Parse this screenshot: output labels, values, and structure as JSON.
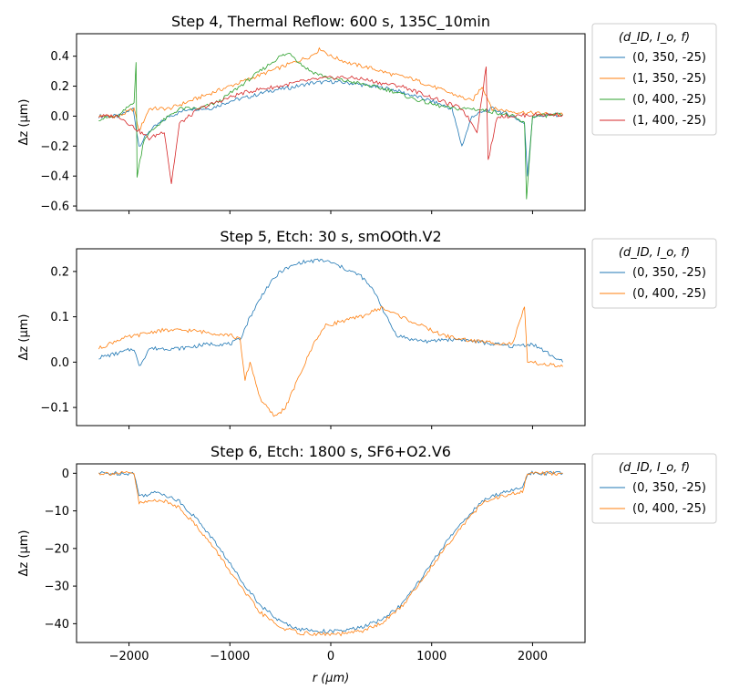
{
  "chart_data": [
    {
      "type": "line",
      "title": "Step 4, Thermal Reflow: 600 s, 135C_10min",
      "xlabel": "",
      "ylabel": "Δz (µm)",
      "xlim": [
        -2520,
        2520
      ],
      "ylim": [
        -0.63,
        0.55
      ],
      "yticks": [
        -0.6,
        -0.4,
        -0.2,
        0.0,
        0.2,
        0.4
      ],
      "ytick_labels": [
        "−0.6",
        "−0.4",
        "−0.2",
        "0.0",
        "0.2",
        "0.4"
      ],
      "xticks": [
        -2000,
        -1000,
        0,
        1000,
        2000
      ],
      "legend": {
        "title": "(d_ID, I_o, f)",
        "placement": "outside-right"
      },
      "series": [
        {
          "name": "(0, 350, -25)",
          "color": "#1f77b4",
          "points": [
            [
              -2300,
              0.0
            ],
            [
              -2100,
              0.0
            ],
            [
              -1960,
              0.05
            ],
            [
              -1900,
              -0.2
            ],
            [
              -1800,
              -0.1
            ],
            [
              -1600,
              0.0
            ],
            [
              -1400,
              0.05
            ],
            [
              -1200,
              0.05
            ],
            [
              -1000,
              0.1
            ],
            [
              -800,
              0.13
            ],
            [
              -600,
              0.17
            ],
            [
              -400,
              0.19
            ],
            [
              -200,
              0.22
            ],
            [
              0,
              0.23
            ],
            [
              200,
              0.22
            ],
            [
              400,
              0.2
            ],
            [
              600,
              0.18
            ],
            [
              800,
              0.14
            ],
            [
              1000,
              0.1
            ],
            [
              1200,
              0.05
            ],
            [
              1300,
              -0.2
            ],
            [
              1400,
              0.0
            ],
            [
              1600,
              0.05
            ],
            [
              1800,
              0.0
            ],
            [
              1920,
              -0.05
            ],
            [
              1950,
              -0.4
            ],
            [
              2000,
              0.0
            ],
            [
              2300,
              0.01
            ]
          ]
        },
        {
          "name": "(1, 350, -25)",
          "color": "#ff7f0e",
          "points": [
            [
              -2300,
              0.0
            ],
            [
              -2100,
              0.0
            ],
            [
              -1950,
              0.05
            ],
            [
              -1900,
              -0.1
            ],
            [
              -1800,
              0.05
            ],
            [
              -1600,
              0.05
            ],
            [
              -1400,
              0.1
            ],
            [
              -1200,
              0.15
            ],
            [
              -1000,
              0.2
            ],
            [
              -800,
              0.25
            ],
            [
              -600,
              0.3
            ],
            [
              -400,
              0.35
            ],
            [
              -200,
              0.4
            ],
            [
              -100,
              0.45
            ],
            [
              0,
              0.4
            ],
            [
              200,
              0.35
            ],
            [
              400,
              0.32
            ],
            [
              600,
              0.28
            ],
            [
              800,
              0.25
            ],
            [
              1000,
              0.2
            ],
            [
              1200,
              0.15
            ],
            [
              1400,
              0.1
            ],
            [
              1500,
              0.2
            ],
            [
              1600,
              0.05
            ],
            [
              1800,
              0.03
            ],
            [
              2000,
              0.02
            ],
            [
              2300,
              0.01
            ]
          ]
        },
        {
          "name": "(0, 400, -25)",
          "color": "#2ca02c",
          "points": [
            [
              -2300,
              -0.02
            ],
            [
              -2100,
              0.0
            ],
            [
              -1950,
              0.1
            ],
            [
              -1930,
              0.35
            ],
            [
              -1920,
              -0.4
            ],
            [
              -1850,
              -0.15
            ],
            [
              -1700,
              -0.05
            ],
            [
              -1500,
              0.05
            ],
            [
              -1300,
              0.05
            ],
            [
              -1100,
              0.1
            ],
            [
              -900,
              0.2
            ],
            [
              -700,
              0.3
            ],
            [
              -500,
              0.4
            ],
            [
              -400,
              0.42
            ],
            [
              -300,
              0.35
            ],
            [
              -200,
              0.3
            ],
            [
              0,
              0.25
            ],
            [
              200,
              0.23
            ],
            [
              400,
              0.2
            ],
            [
              600,
              0.17
            ],
            [
              800,
              0.12
            ],
            [
              1000,
              0.08
            ],
            [
              1200,
              0.05
            ],
            [
              1400,
              0.05
            ],
            [
              1600,
              0.03
            ],
            [
              1800,
              0.0
            ],
            [
              1920,
              -0.05
            ],
            [
              1940,
              -0.55
            ],
            [
              2000,
              0.0
            ],
            [
              2300,
              0.01
            ]
          ]
        },
        {
          "name": "(1, 400, -25)",
          "color": "#d62728",
          "points": [
            [
              -2300,
              0.0
            ],
            [
              -2100,
              0.0
            ],
            [
              -1900,
              -0.1
            ],
            [
              -1800,
              -0.15
            ],
            [
              -1650,
              -0.1
            ],
            [
              -1580,
              -0.45
            ],
            [
              -1500,
              -0.05
            ],
            [
              -1300,
              0.05
            ],
            [
              -1100,
              0.1
            ],
            [
              -900,
              0.15
            ],
            [
              -700,
              0.18
            ],
            [
              -500,
              0.2
            ],
            [
              -300,
              0.23
            ],
            [
              -100,
              0.25
            ],
            [
              100,
              0.26
            ],
            [
              300,
              0.25
            ],
            [
              500,
              0.22
            ],
            [
              700,
              0.2
            ],
            [
              900,
              0.15
            ],
            [
              1100,
              0.1
            ],
            [
              1300,
              0.05
            ],
            [
              1450,
              -0.1
            ],
            [
              1540,
              0.33
            ],
            [
              1560,
              -0.3
            ],
            [
              1650,
              0.0
            ],
            [
              1800,
              0.0
            ],
            [
              2000,
              0.01
            ],
            [
              2300,
              0.01
            ]
          ]
        }
      ]
    },
    {
      "type": "line",
      "title": "Step 5, Etch: 30 s, smOOth.V2",
      "xlabel": "",
      "ylabel": "Δz (µm)",
      "xlim": [
        -2520,
        2520
      ],
      "ylim": [
        -0.14,
        0.25
      ],
      "yticks": [
        -0.1,
        0.0,
        0.1,
        0.2
      ],
      "ytick_labels": [
        "−0.1",
        "0.0",
        "0.1",
        "0.2"
      ],
      "xticks": [
        -2000,
        -1000,
        0,
        1000,
        2000
      ],
      "legend": {
        "title": "(d_ID, I_o, f)",
        "placement": "outside-right"
      },
      "series": [
        {
          "name": "(0, 350, -25)",
          "color": "#1f77b4",
          "points": [
            [
              -2300,
              0.01
            ],
            [
              -2100,
              0.02
            ],
            [
              -1950,
              0.03
            ],
            [
              -1900,
              -0.01
            ],
            [
              -1800,
              0.03
            ],
            [
              -1500,
              0.03
            ],
            [
              -1200,
              0.04
            ],
            [
              -1000,
              0.04
            ],
            [
              -900,
              0.05
            ],
            [
              -800,
              0.1
            ],
            [
              -650,
              0.16
            ],
            [
              -500,
              0.2
            ],
            [
              -300,
              0.22
            ],
            [
              -100,
              0.225
            ],
            [
              0,
              0.22
            ],
            [
              200,
              0.2
            ],
            [
              300,
              0.19
            ],
            [
              450,
              0.15
            ],
            [
              550,
              0.1
            ],
            [
              650,
              0.06
            ],
            [
              800,
              0.05
            ],
            [
              1000,
              0.045
            ],
            [
              1100,
              0.05
            ],
            [
              1300,
              0.05
            ],
            [
              1600,
              0.04
            ],
            [
              1800,
              0.035
            ],
            [
              2000,
              0.04
            ],
            [
              2300,
              0.0
            ]
          ]
        },
        {
          "name": "(0, 400, -25)",
          "color": "#ff7f0e",
          "points": [
            [
              -2300,
              0.03
            ],
            [
              -2100,
              0.05
            ],
            [
              -1900,
              0.06
            ],
            [
              -1700,
              0.07
            ],
            [
              -1400,
              0.07
            ],
            [
              -1200,
              0.065
            ],
            [
              -1000,
              0.06
            ],
            [
              -900,
              0.05
            ],
            [
              -850,
              -0.04
            ],
            [
              -800,
              0.0
            ],
            [
              -700,
              -0.08
            ],
            [
              -600,
              -0.11
            ],
            [
              -550,
              -0.12
            ],
            [
              -450,
              -0.1
            ],
            [
              -350,
              -0.05
            ],
            [
              -250,
              0.0
            ],
            [
              -150,
              0.05
            ],
            [
              -50,
              0.08
            ],
            [
              100,
              0.09
            ],
            [
              300,
              0.1
            ],
            [
              500,
              0.12
            ],
            [
              700,
              0.1
            ],
            [
              900,
              0.08
            ],
            [
              1000,
              0.07
            ],
            [
              1100,
              0.06
            ],
            [
              1300,
              0.05
            ],
            [
              1500,
              0.045
            ],
            [
              1800,
              0.04
            ],
            [
              1920,
              0.12
            ],
            [
              1950,
              0.0
            ],
            [
              2300,
              -0.01
            ]
          ]
        }
      ]
    },
    {
      "type": "line",
      "title": "Step 6, Etch: 1800 s, SF6+O2.V6",
      "xlabel": "r (µm)",
      "ylabel": "Δz (µm)",
      "xlim": [
        -2520,
        2520
      ],
      "ylim": [
        -45,
        2.5
      ],
      "yticks": [
        -40,
        -30,
        -20,
        -10,
        0
      ],
      "ytick_labels": [
        "−40",
        "−30",
        "−20",
        "−10",
        "0"
      ],
      "xticks": [
        -2000,
        -1000,
        0,
        1000,
        2000
      ],
      "xtick_labels": [
        "−2000",
        "−1000",
        "0",
        "1000",
        "2000"
      ],
      "legend": {
        "title": "(d_ID, I_o, f)",
        "placement": "outside-right"
      },
      "series": [
        {
          "name": "(0, 350, -25)",
          "color": "#1f77b4",
          "points": [
            [
              -2300,
              0.0
            ],
            [
              -1950,
              0.0
            ],
            [
              -1900,
              -6.0
            ],
            [
              -1700,
              -5.0
            ],
            [
              -1500,
              -7.5
            ],
            [
              -1300,
              -13.0
            ],
            [
              -1100,
              -20.0
            ],
            [
              -900,
              -28.0
            ],
            [
              -700,
              -35.0
            ],
            [
              -500,
              -39.5
            ],
            [
              -300,
              -41.5
            ],
            [
              -100,
              -42.0
            ],
            [
              100,
              -42.0
            ],
            [
              300,
              -41.0
            ],
            [
              500,
              -39.0
            ],
            [
              700,
              -35.0
            ],
            [
              900,
              -28.0
            ],
            [
              1100,
              -20.0
            ],
            [
              1300,
              -13.0
            ],
            [
              1500,
              -7.5
            ],
            [
              1700,
              -5.0
            ],
            [
              1900,
              -4.0
            ],
            [
              1950,
              0.0
            ],
            [
              2300,
              0.0
            ]
          ]
        },
        {
          "name": "(0, 400, -25)",
          "color": "#ff7f0e",
          "points": [
            [
              -2300,
              0.0
            ],
            [
              -1950,
              0.0
            ],
            [
              -1900,
              -8.0
            ],
            [
              -1700,
              -7.0
            ],
            [
              -1500,
              -9.0
            ],
            [
              -1300,
              -15.0
            ],
            [
              -1100,
              -22.0
            ],
            [
              -900,
              -30.0
            ],
            [
              -700,
              -37.0
            ],
            [
              -500,
              -41.0
            ],
            [
              -300,
              -42.5
            ],
            [
              -100,
              -42.8
            ],
            [
              100,
              -42.8
            ],
            [
              300,
              -42.0
            ],
            [
              500,
              -40.0
            ],
            [
              700,
              -35.5
            ],
            [
              900,
              -28.5
            ],
            [
              1100,
              -21.0
            ],
            [
              1300,
              -14.0
            ],
            [
              1500,
              -8.0
            ],
            [
              1700,
              -6.0
            ],
            [
              1900,
              -5.0
            ],
            [
              1950,
              0.0
            ],
            [
              2300,
              0.0
            ]
          ]
        }
      ]
    }
  ]
}
